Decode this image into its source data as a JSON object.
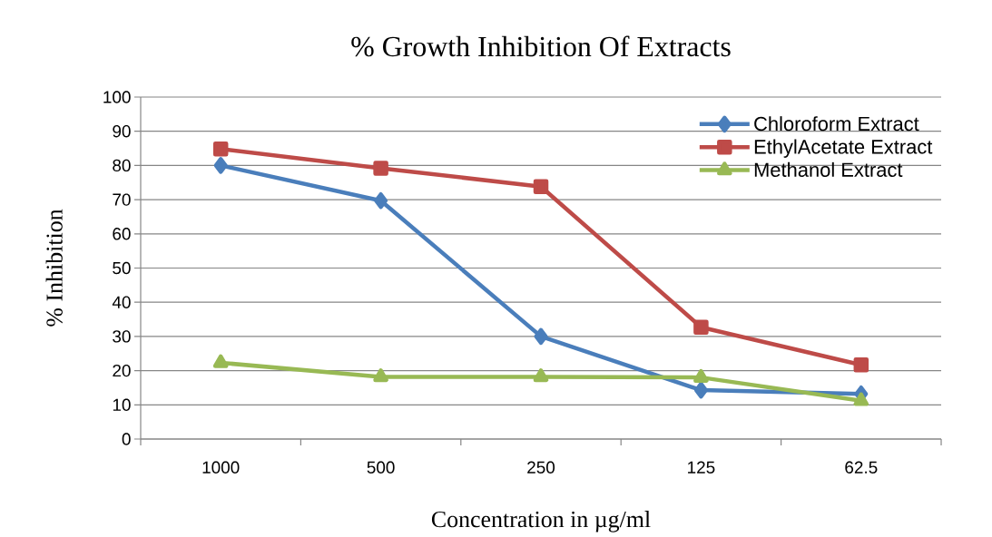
{
  "chart_data": {
    "type": "line",
    "title": "% Growth Inhibition Of Extracts",
    "xlabel": "Concentration in µg/ml",
    "ylabel": "% Inhibition",
    "categories": [
      "1000",
      "500",
      "250",
      "125",
      "62.5"
    ],
    "series": [
      {
        "name": "Chloroform Extract",
        "color": "#4a7ebb",
        "marker": "diamond",
        "values": [
          80,
          69.7,
          30,
          14.3,
          13.2
        ]
      },
      {
        "name": "EthylAcetate Extract",
        "color": "#be4b48",
        "marker": "square",
        "values": [
          84.8,
          79.2,
          73.8,
          32.7,
          21.7
        ]
      },
      {
        "name": "Methanol Extract",
        "color": "#98b954",
        "marker": "triangle",
        "values": [
          22.3,
          18.2,
          18.2,
          18,
          11.2
        ]
      }
    ],
    "ylim": [
      0,
      100
    ],
    "yticks": [
      0,
      10,
      20,
      30,
      40,
      50,
      60,
      70,
      80,
      90,
      100
    ],
    "grid": "y",
    "legend": "top right",
    "line_style": "solid"
  }
}
